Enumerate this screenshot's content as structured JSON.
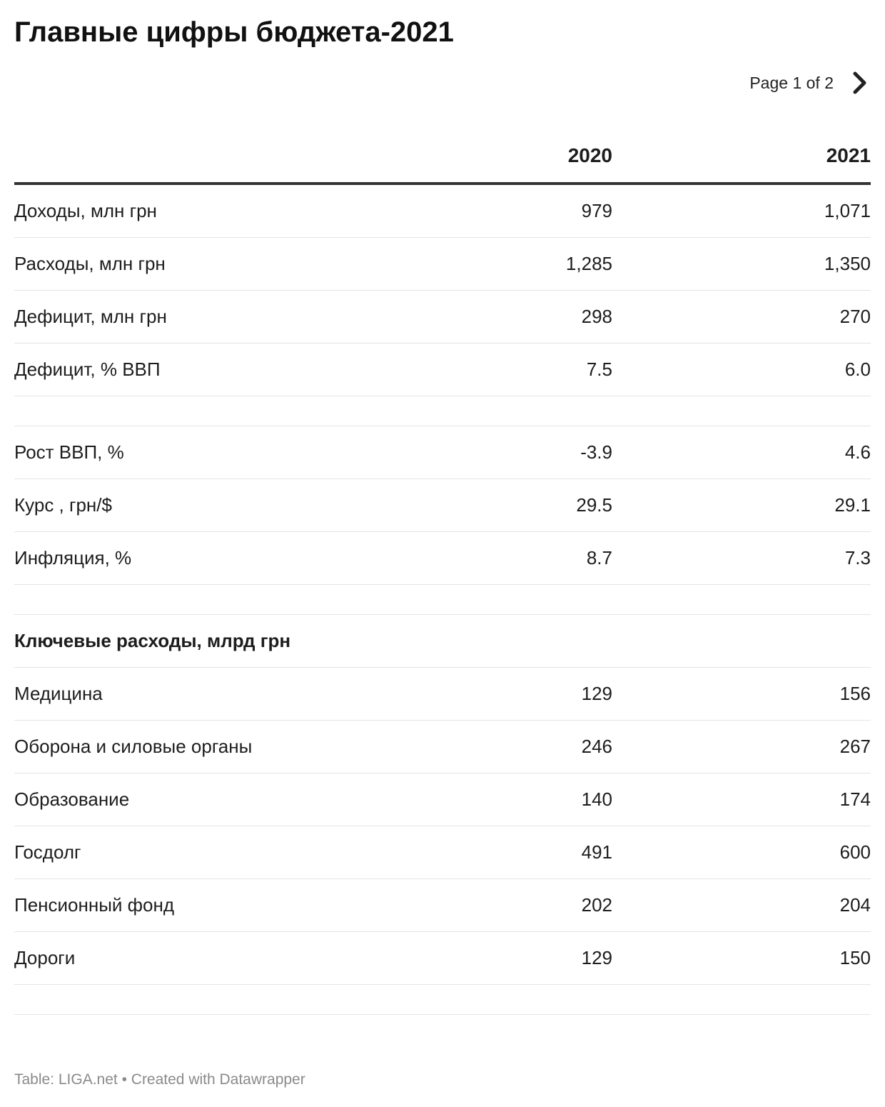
{
  "title": "Главные цифры бюджета-2021",
  "pager": {
    "label": "Page 1 of 2",
    "next_icon": "chevron-right-icon"
  },
  "footer": "Table: LIGA.net • Created with Datawrapper",
  "chart_data": {
    "type": "table",
    "title": "Главные цифры бюджета-2021",
    "columns": [
      "",
      "2020",
      "2021"
    ],
    "rows": [
      {
        "label": "Доходы, млн грн",
        "v2020": "979",
        "v2021": "1,071"
      },
      {
        "label": "Расходы, млн грн",
        "v2020": "1,285",
        "v2021": "1,350"
      },
      {
        "label": "Дефицит, млн грн",
        "v2020": "298",
        "v2021": "270"
      },
      {
        "label": "Дефицит, % ВВП",
        "v2020": "7.5",
        "v2021": "6.0"
      },
      {
        "label": "",
        "v2020": "",
        "v2021": "",
        "blank": true
      },
      {
        "label": "Рост ВВП, %",
        "v2020": "-3.9",
        "v2021": "4.6"
      },
      {
        "label": "Курс , грн/$",
        "v2020": "29.5",
        "v2021": "29.1"
      },
      {
        "label": "Инфляция, %",
        "v2020": "8.7",
        "v2021": "7.3"
      },
      {
        "label": "",
        "v2020": "",
        "v2021": "",
        "blank": true
      },
      {
        "label": "Ключевые расходы, млрд грн",
        "v2020": "",
        "v2021": "",
        "section": true
      },
      {
        "label": "Медицина",
        "v2020": "129",
        "v2021": "156"
      },
      {
        "label": "Оборона и силовые органы",
        "v2020": "246",
        "v2021": "267"
      },
      {
        "label": "Образование",
        "v2020": "140",
        "v2021": "174"
      },
      {
        "label": "Госдолг",
        "v2020": "491",
        "v2021": "600"
      },
      {
        "label": "Пенсионный фонд",
        "v2020": "202",
        "v2021": "204"
      },
      {
        "label": "Дороги",
        "v2020": "129",
        "v2021": "150"
      },
      {
        "label": "",
        "v2020": "",
        "v2021": "",
        "blank": true
      }
    ]
  }
}
